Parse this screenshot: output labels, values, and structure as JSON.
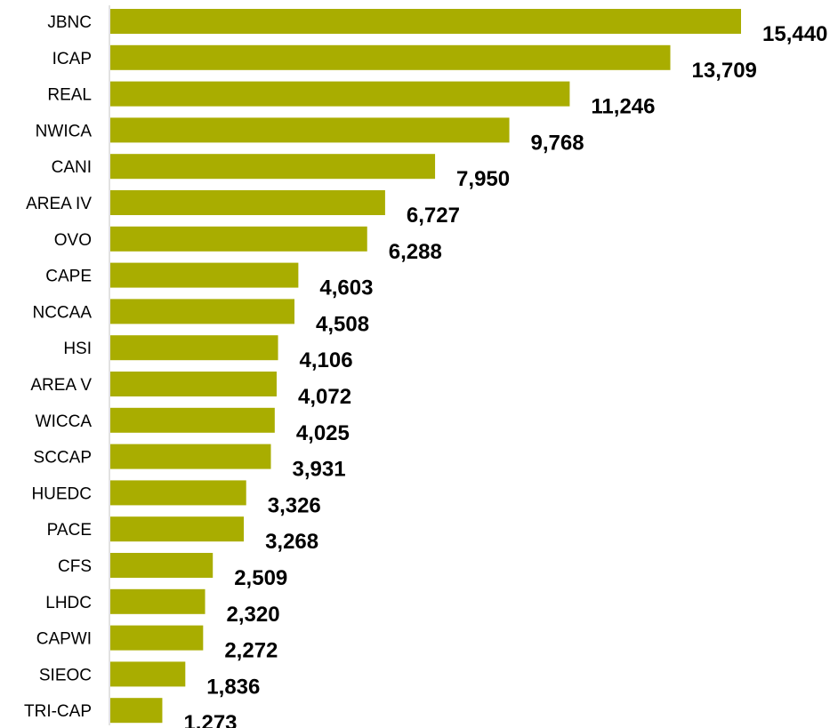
{
  "chart_data": {
    "type": "bar",
    "orientation": "horizontal",
    "categories": [
      "JBNC",
      "ICAP",
      "REAL",
      "NWICA",
      "CANI",
      "AREA IV",
      "OVO",
      "CAPE",
      "NCCAA",
      "HSI",
      "AREA V",
      "WICCA",
      "SCCAP",
      "HUEDC",
      "PACE",
      "CFS",
      "LHDC",
      "CAPWI",
      "SIEOC",
      "TRI-CAP"
    ],
    "values": [
      15440,
      13709,
      11246,
      9768,
      7950,
      6727,
      6288,
      4603,
      4508,
      4106,
      4072,
      4025,
      3931,
      3326,
      3268,
      2509,
      2320,
      2272,
      1836,
      1273
    ],
    "value_labels": [
      "15,440",
      "13,709",
      "11,246",
      "9,768",
      "7,950",
      "6,727",
      "6,288",
      "4,603",
      "4,508",
      "4,106",
      "4,072",
      "4,025",
      "3,931",
      "3,326",
      "3,268",
      "2,509",
      "2,320",
      "2,272",
      "1,836",
      "1,273"
    ],
    "xlim": [
      0,
      15440
    ],
    "title": "",
    "xlabel": "",
    "ylabel": "",
    "grid": false,
    "legend": "none",
    "colors": {
      "bar": "#a9ad00",
      "axis": "#d9d9d9",
      "text": "#000000"
    }
  }
}
